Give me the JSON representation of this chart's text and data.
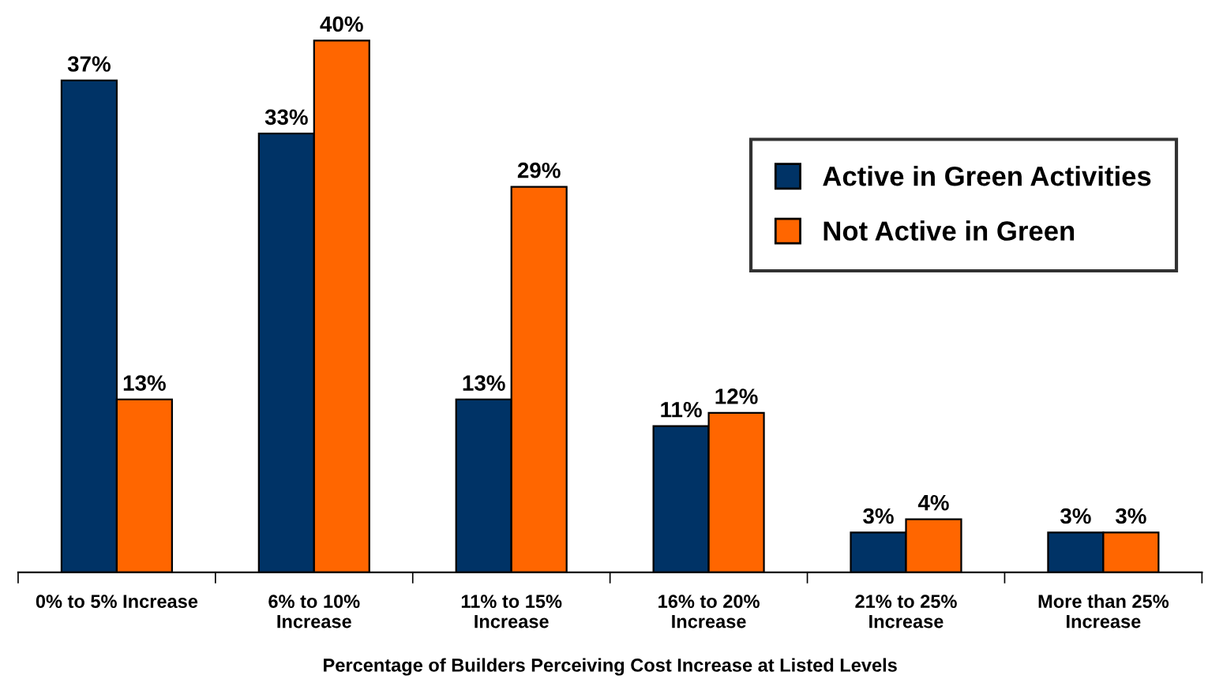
{
  "chart_data": {
    "type": "bar",
    "xlabel": "Percentage of Builders Perceiving Cost Increase at Listed Levels",
    "categories": [
      "0% to 5% Increase",
      "6% to 10%\nIncrease",
      "11% to 15%\nIncrease",
      "16% to 20%\nIncrease",
      "21% to 25%\nIncrease",
      "More than 25%\nIncrease"
    ],
    "series": [
      {
        "name": "Active in Green Activities",
        "color": "#003366",
        "values": [
          37,
          33,
          13,
          11,
          3,
          3
        ],
        "value_labels": [
          "37%",
          "33%",
          "13%",
          "11%",
          "3%",
          "3%"
        ]
      },
      {
        "name": "Not Active in Green",
        "color": "#ff6600",
        "values": [
          13,
          40,
          29,
          12,
          4,
          3
        ],
        "value_labels": [
          "13%",
          "40%",
          "29%",
          "12%",
          "4%",
          "3%"
        ]
      }
    ],
    "legend": "top right",
    "grid": false
  }
}
